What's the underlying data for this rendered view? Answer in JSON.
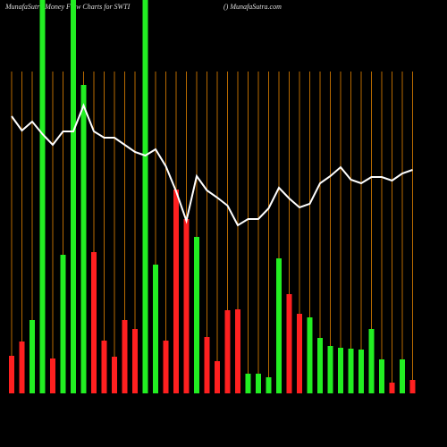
{
  "chart_data": {
    "type": "bar",
    "title": "MunafaSutra  Money Flow  Charts for SWTI",
    "subtitle": "() MunafaSutra.com",
    "ylim": [
      0,
      440
    ],
    "bars": {
      "values": [
        42,
        58,
        82,
        440,
        39,
        155,
        440,
        345,
        158,
        59,
        41,
        82,
        72,
        440,
        144,
        59,
        228,
        195,
        175,
        63,
        36,
        93,
        94,
        22,
        22,
        18,
        151,
        111,
        89,
        85,
        62,
        53,
        51,
        50,
        49,
        72,
        38,
        12,
        38,
        15
      ],
      "colors": [
        "#ff2020",
        "#ff2020",
        "#22ee22",
        "#22ee22",
        "#ff2020",
        "#22ee22",
        "#22ee22",
        "#22ee22",
        "#ff2020",
        "#ff2020",
        "#ff2020",
        "#ff2020",
        "#ff2020",
        "#22ee22",
        "#22ee22",
        "#ff2020",
        "#ff2020",
        "#ff2020",
        "#22ee22",
        "#ff2020",
        "#ff2020",
        "#ff2020",
        "#ff2020",
        "#22ee22",
        "#22ee22",
        "#22ee22",
        "#22ee22",
        "#ff2020",
        "#ff2020",
        "#22ee22",
        "#22ee22",
        "#22ee22",
        "#22ee22",
        "#22ee22",
        "#22ee22",
        "#22ee22",
        "#22ee22",
        "#ff2020",
        "#22ee22",
        "#ff2020"
      ]
    },
    "line": {
      "color": "#ffffff",
      "values": [
        310,
        294,
        304,
        290,
        278,
        293,
        293,
        322,
        293,
        286,
        286,
        278,
        270,
        266,
        273,
        254,
        226,
        193,
        243,
        227,
        219,
        210,
        188,
        195,
        195,
        207,
        230,
        218,
        208,
        212,
        235,
        243,
        253,
        239,
        235,
        242,
        242,
        238,
        246,
        250
      ]
    },
    "grid_color": "#b86a00"
  }
}
